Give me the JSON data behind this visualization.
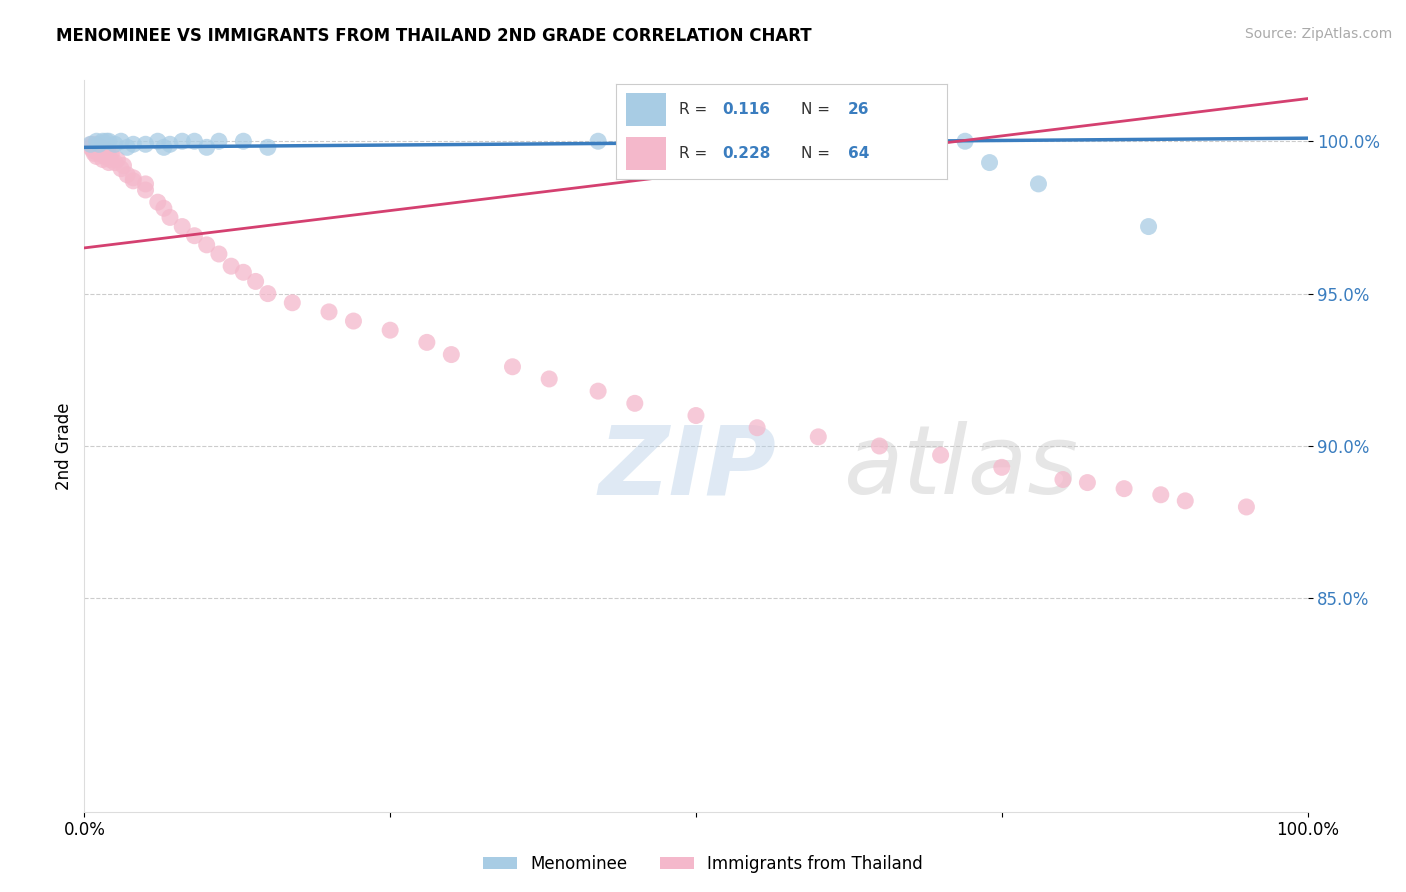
{
  "title": "MENOMINEE VS IMMIGRANTS FROM THAILAND 2ND GRADE CORRELATION CHART",
  "source": "Source: ZipAtlas.com",
  "ylabel": "2nd Grade",
  "watermark": "ZIPatlas",
  "r_menominee": 0.116,
  "n_menominee": 26,
  "r_thailand": 0.228,
  "n_thailand": 64,
  "xlim": [
    0.0,
    1.0
  ],
  "ylim": [
    0.78,
    1.02
  ],
  "yticks": [
    0.85,
    0.9,
    0.95,
    1.0
  ],
  "ytick_labels": [
    "85.0%",
    "90.0%",
    "95.0%",
    "100.0%"
  ],
  "xtick_labels": [
    "0.0%",
    "",
    "",
    "",
    "100.0%"
  ],
  "color_menominee": "#a8cce4",
  "color_thailand": "#f4b8cb",
  "trendline_menominee_color": "#3a7dbf",
  "trendline_thailand_color": "#d44070",
  "background_color": "#ffffff",
  "grid_color": "#cccccc",
  "menominee_x": [
    0.005,
    0.01,
    0.012,
    0.015,
    0.018,
    0.02,
    0.025,
    0.03,
    0.035,
    0.04,
    0.05,
    0.06,
    0.065,
    0.07,
    0.08,
    0.09,
    0.1,
    0.11,
    0.13,
    0.15,
    0.42,
    0.58,
    0.72,
    0.74,
    0.78,
    0.87
  ],
  "menominee_y": [
    0.999,
    1.0,
    0.999,
    1.0,
    1.0,
    1.0,
    0.999,
    1.0,
    0.998,
    0.999,
    0.999,
    1.0,
    0.998,
    0.999,
    1.0,
    1.0,
    0.998,
    1.0,
    1.0,
    0.998,
    1.0,
    1.0,
    1.0,
    0.993,
    0.986,
    0.972
  ],
  "thailand_x": [
    0.005,
    0.006,
    0.007,
    0.008,
    0.009,
    0.01,
    0.01,
    0.01,
    0.01,
    0.012,
    0.013,
    0.014,
    0.015,
    0.015,
    0.016,
    0.017,
    0.018,
    0.019,
    0.02,
    0.02,
    0.021,
    0.022,
    0.025,
    0.027,
    0.03,
    0.032,
    0.035,
    0.04,
    0.04,
    0.05,
    0.05,
    0.06,
    0.065,
    0.07,
    0.08,
    0.09,
    0.1,
    0.11,
    0.12,
    0.13,
    0.14,
    0.15,
    0.17,
    0.2,
    0.22,
    0.25,
    0.28,
    0.3,
    0.35,
    0.38,
    0.42,
    0.45,
    0.5,
    0.55,
    0.6,
    0.65,
    0.7,
    0.75,
    0.8,
    0.82,
    0.85,
    0.88,
    0.9,
    0.95
  ],
  "thailand_y": [
    0.998,
    0.999,
    0.997,
    0.996,
    0.998,
    0.995,
    0.997,
    0.998,
    0.999,
    0.996,
    0.997,
    0.998,
    0.994,
    0.996,
    0.997,
    0.995,
    0.996,
    0.997,
    0.993,
    0.995,
    0.994,
    0.996,
    0.993,
    0.994,
    0.991,
    0.992,
    0.989,
    0.987,
    0.988,
    0.984,
    0.986,
    0.98,
    0.978,
    0.975,
    0.972,
    0.969,
    0.966,
    0.963,
    0.959,
    0.957,
    0.954,
    0.95,
    0.947,
    0.944,
    0.941,
    0.938,
    0.934,
    0.93,
    0.926,
    0.922,
    0.918,
    0.914,
    0.91,
    0.906,
    0.903,
    0.9,
    0.897,
    0.893,
    0.889,
    0.888,
    0.886,
    0.884,
    0.882,
    0.88
  ]
}
